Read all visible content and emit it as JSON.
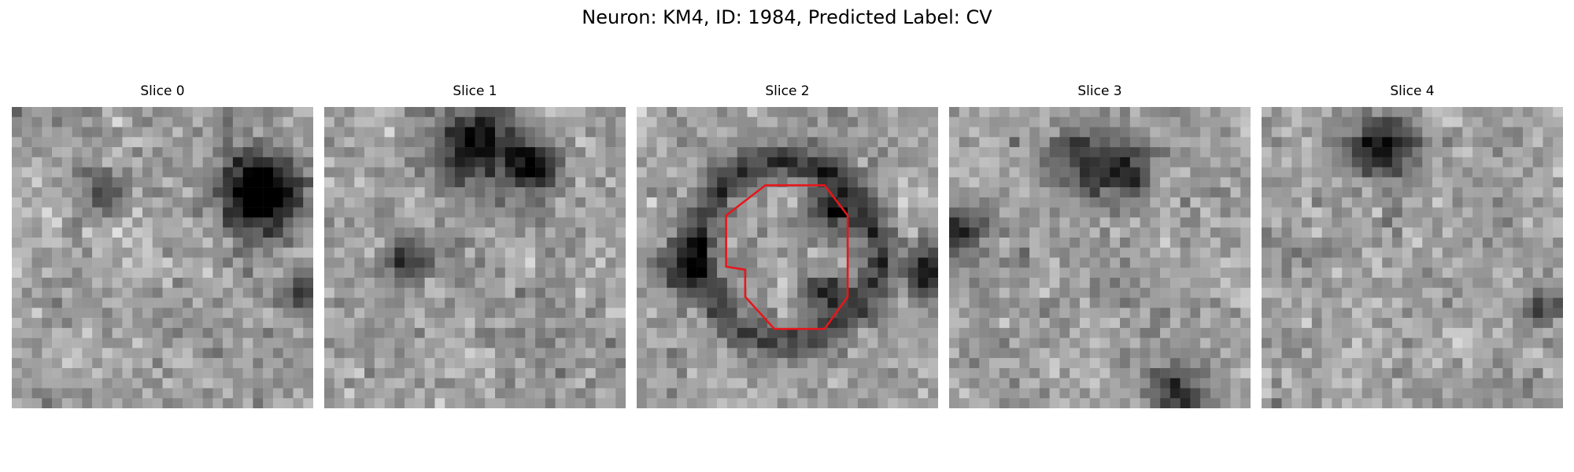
{
  "figure": {
    "title": "Neuron: KM4, ID: 1984, Predicted Label: CV"
  },
  "panels": [
    {
      "title": "Slice 0",
      "dark_blobs": [
        [
          0.82,
          0.28,
          0.09,
          0.82
        ],
        [
          0.3,
          0.28,
          0.05,
          0.35
        ],
        [
          0.97,
          0.62,
          0.05,
          0.45
        ]
      ]
    },
    {
      "title": "Slice 1",
      "dark_blobs": [
        [
          0.52,
          0.13,
          0.1,
          0.6
        ],
        [
          0.7,
          0.2,
          0.06,
          0.55
        ],
        [
          0.28,
          0.52,
          0.05,
          0.45
        ]
      ]
    },
    {
      "title": "Slice 2",
      "dark_blobs": [
        [
          0.5,
          0.48,
          0.3,
          0.0
        ],
        [
          0.15,
          0.52,
          0.06,
          0.55
        ],
        [
          0.97,
          0.55,
          0.06,
          0.55
        ],
        [
          0.65,
          0.35,
          0.05,
          0.5
        ],
        [
          0.62,
          0.62,
          0.05,
          0.45
        ]
      ]
    },
    {
      "title": "Slice 3",
      "dark_blobs": [
        [
          0.45,
          0.18,
          0.08,
          0.45
        ],
        [
          0.6,
          0.2,
          0.06,
          0.4
        ],
        [
          0.05,
          0.42,
          0.05,
          0.35
        ],
        [
          0.75,
          0.95,
          0.07,
          0.4
        ]
      ]
    },
    {
      "title": "Slice 4",
      "dark_blobs": [
        [
          0.4,
          0.13,
          0.08,
          0.55
        ],
        [
          0.92,
          0.66,
          0.04,
          0.35
        ]
      ]
    }
  ],
  "colors": {
    "roi_outline": "#e8161b",
    "colormap": "gray"
  },
  "image_grid_size": 30,
  "noise_seed": 1984,
  "roi": {
    "panel_index": 2,
    "polygon_cells": [
      [
        12.8,
        7.8
      ],
      [
        18.7,
        7.8
      ],
      [
        21.0,
        10.8
      ],
      [
        21.0,
        18.9
      ],
      [
        18.7,
        22.1
      ],
      [
        13.7,
        22.1
      ],
      [
        10.8,
        18.9
      ],
      [
        10.8,
        16.2
      ],
      [
        8.9,
        15.9
      ],
      [
        8.9,
        10.8
      ]
    ]
  }
}
